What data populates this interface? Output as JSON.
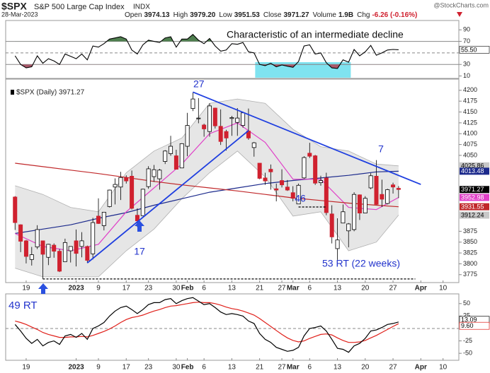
{
  "header": {
    "symbol": "$SPX",
    "name": "S&P 500 Large Cap Index",
    "exchange": "INDX",
    "watermark": "@StockCharts.com",
    "date": "28-Mar-2023",
    "quote": [
      {
        "label": "Open",
        "value": "3974.13"
      },
      {
        "label": "High",
        "value": "3979.20"
      },
      {
        "label": "Low",
        "value": "3951.53"
      },
      {
        "label": "Close",
        "value": "3971.27"
      },
      {
        "label": "Volume",
        "value": "1.9B"
      },
      {
        "label": "Chg",
        "value": "-6.26 (-0.16%)",
        "color": "#d0212f"
      }
    ]
  },
  "chart_data": {
    "type": "candlestick",
    "categories": [
      "Dec 15",
      "Dec 16",
      "Dec 19",
      "Dec 20",
      "Dec 21",
      "Dec 22",
      "Dec 23",
      "Dec 27",
      "Dec 28",
      "Dec 29",
      "Dec 30",
      "Jan 3",
      "Jan 4",
      "Jan 5",
      "Jan 6",
      "Jan 9",
      "Jan 10",
      "Jan 11",
      "Jan 12",
      "Jan 13",
      "Jan 17",
      "Jan 18",
      "Jan 19",
      "Jan 20",
      "Jan 23",
      "Jan 24",
      "Jan 25",
      "Jan 26",
      "Jan 27",
      "Jan 30",
      "Jan 31",
      "Feb 1",
      "Feb 2",
      "Feb 3",
      "Feb 6",
      "Feb 7",
      "Feb 8",
      "Feb 9",
      "Feb 10",
      "Feb 13",
      "Feb 14",
      "Feb 15",
      "Feb 16",
      "Feb 17",
      "Feb 21",
      "Feb 22",
      "Feb 23",
      "Feb 24",
      "Feb 27",
      "Feb 28",
      "Mar 1",
      "Mar 2",
      "Mar 3",
      "Mar 6",
      "Mar 7",
      "Mar 8",
      "Mar 9",
      "Mar 10",
      "Mar 13",
      "Mar 14",
      "Mar 15",
      "Mar 16",
      "Mar 17",
      "Mar 20",
      "Mar 21",
      "Mar 22",
      "Mar 23",
      "Mar 24",
      "Mar 27",
      "Mar 28",
      "Mar 29",
      "Mar 30",
      "Mar 31",
      "Apr 3",
      "Apr 4",
      "Apr 5",
      "Apr 6",
      "Apr 10",
      "Apr 11",
      "Apr 12"
    ],
    "xticks": [
      {
        "value": "Dec 19",
        "label": "19"
      },
      {
        "value": "Jan 3",
        "label": "2023"
      },
      {
        "value": "Jan 9",
        "label": "9"
      },
      {
        "value": "Jan 17",
        "label": "17"
      },
      {
        "value": "Jan 23",
        "label": "23"
      },
      {
        "value": "Jan 30",
        "label": "30"
      },
      {
        "value": "Feb 1",
        "label": "Feb"
      },
      {
        "value": "Feb 6",
        "label": "6"
      },
      {
        "value": "Feb 13",
        "label": "13"
      },
      {
        "value": "Feb 21",
        "label": "21"
      },
      {
        "value": "Feb 27",
        "label": "27"
      },
      {
        "value": "Mar 1",
        "label": "Mar"
      },
      {
        "value": "Mar 6",
        "label": "6"
      },
      {
        "value": "Mar 13",
        "label": "13"
      },
      {
        "value": "Mar 20",
        "label": "20"
      },
      {
        "value": "Mar 27",
        "label": "27"
      },
      {
        "value": "Apr 3",
        "label": "Apr"
      },
      {
        "value": "Apr 10",
        "label": "10"
      }
    ],
    "price": {
      "legend": "$SPX (Daily) 3971.27",
      "ylim": [
        3760,
        4216
      ],
      "yticks": [
        4200,
        4175,
        4150,
        4125,
        4100,
        4075,
        4050,
        3875,
        3850,
        3825,
        3800,
        3775
      ],
      "up_color": "#ffffff",
      "down_color": "#d0212f",
      "open": [
        3954,
        3890,
        3853,
        3810,
        3839,
        3853,
        3815,
        3843,
        3829,
        3805,
        3830,
        3853,
        3840,
        3840,
        3823,
        3910,
        3888,
        3932,
        3977,
        3977,
        3999,
        4002,
        3912,
        3911,
        3978,
        4001,
        3996,
        4036,
        4054,
        4049,
        4021,
        4071,
        4158,
        4136,
        4120,
        4105,
        4159,
        4117,
        4105,
        4135,
        4126,
        4119,
        4106,
        4068,
        4032,
        3998,
        4018,
        3973,
        3992,
        3977,
        3964,
        3938,
        3998,
        4055,
        4049,
        3987,
        3998,
        3915,
        3835,
        3894,
        3876,
        3879,
        3959,
        3917,
        3975,
        4002,
        3960,
        3939,
        3982,
        3974.13,
        null,
        null,
        null,
        null,
        null,
        null,
        null,
        null,
        null,
        null
      ],
      "high": [
        3956,
        3891,
        3855,
        3839,
        3889,
        3853,
        3846,
        3847,
        3834,
        3858,
        3840,
        3879,
        3873,
        3842,
        3906,
        3951,
        3919,
        3971,
        3997,
        4012,
        4004,
        4015,
        3928,
        3973,
        4025,
        4028,
        4019,
        4062,
        4095,
        4063,
        4078,
        4148,
        4195,
        4182,
        4123,
        4170,
        4160,
        4156,
        4109,
        4141,
        4159,
        4148,
        4158,
        4081,
        4032,
        4010,
        4029,
        3985,
        4018,
        3993,
        3979,
        3985,
        4048,
        4079,
        4051,
        4003,
        4010,
        3935,
        3905,
        3937,
        3894,
        3965,
        3960,
        3956,
        4009,
        4039,
        3994,
        3973,
        3987,
        3979.2,
        null,
        null,
        null,
        null,
        null,
        null,
        null,
        null,
        null,
        null
      ],
      "low": [
        3878,
        3827,
        3801,
        3796,
        3834,
        3765,
        3797,
        3814,
        3781,
        3805,
        3803,
        3794,
        3815,
        3802,
        3810,
        3892,
        3877,
        3930,
        3937,
        3947,
        3985,
        3925,
        3885,
        3911,
        3973,
        3989,
        3971,
        4030,
        4049,
        4018,
        4021,
        4048,
        4152,
        4124,
        4093,
        4093,
        4112,
        4074,
        4061,
        4095,
        4095,
        4114,
        4086,
        4047,
        3995,
        3982,
        3971,
        3944,
        3976,
        3968,
        3944,
        3938,
        3996,
        4044,
        3982,
        3980,
        3912,
        3847,
        3809,
        3894,
        3838,
        3875,
        3901,
        3917,
        3972,
        3936,
        3931,
        3937,
        3962,
        3951.53,
        null,
        null,
        null,
        null,
        null,
        null,
        null,
        null,
        null,
        null
      ],
      "close": [
        3895,
        3852,
        3817,
        3821,
        3879,
        3822,
        3845,
        3829,
        3783,
        3849,
        3840,
        3824,
        3853,
        3808,
        3895,
        3893,
        3919,
        3970,
        3983,
        3999,
        3991,
        3928,
        3899,
        3972,
        4019,
        4017,
        4016,
        4060,
        4071,
        4018,
        4077,
        4119,
        4180,
        4136,
        4111,
        4164,
        4118,
        4082,
        4090,
        4137,
        4136,
        4148,
        4090,
        4079,
        3997,
        3991,
        4012,
        3970,
        3982,
        3970,
        3951,
        3981,
        4045,
        4048,
        3986,
        3992,
        3918,
        3862,
        3855,
        3920,
        3892,
        3960,
        3917,
        3951,
        4003,
        3937,
        3949,
        3971,
        3977,
        3971.27,
        null,
        null,
        null,
        null,
        null,
        null,
        null,
        null,
        null,
        null
      ],
      "close_label": "3971.27",
      "close_color": "#000000",
      "band": {
        "color": "#c8c8c8",
        "x": [
          "Dec 15",
          "Dec 22",
          "Dec 30",
          "Jan 9",
          "Jan 17",
          "Jan 24",
          "Jan 31",
          "Feb 7",
          "Feb 14",
          "Feb 22",
          "Mar 1",
          "Mar 8",
          "Mar 15",
          "Mar 22",
          "Mar 28"
        ],
        "upper": [
          3980,
          3960,
          3930,
          3920,
          4010,
          4060,
          4090,
          4170,
          4180,
          4170,
          4110,
          4070,
          4060,
          4030,
          4025.86
        ],
        "lower": [
          3790,
          3770,
          3770,
          3770,
          3830,
          3880,
          3950,
          4010,
          4060,
          4000,
          3910,
          3920,
          3830,
          3850,
          3912.24
        ],
        "upper_label": "4025.86",
        "lower_label": "3912.24"
      },
      "overlays": [
        {
          "color": "#1c2a8c",
          "x": [
            "Dec 15",
            "Dec 22",
            "Dec 30",
            "Jan 9",
            "Jan 17",
            "Jan 24",
            "Jan 31",
            "Feb 7",
            "Feb 14",
            "Feb 22",
            "Mar 1",
            "Mar 8",
            "Mar 15",
            "Mar 22",
            "Mar 28"
          ],
          "values": [
            3870,
            3880,
            3890,
            3905,
            3918,
            3935,
            3950,
            3965,
            3975,
            3985,
            3992,
            3998,
            4004,
            4012,
            4013.48
          ],
          "last_label": "4013.48"
        },
        {
          "color": "#e040c8",
          "x": [
            "Dec 15",
            "Dec 22",
            "Dec 30",
            "Jan 9",
            "Jan 17",
            "Jan 24",
            "Jan 31",
            "Feb 7",
            "Feb 14",
            "Feb 22",
            "Mar 1",
            "Mar 8",
            "Mar 15",
            "Mar 22",
            "Mar 28"
          ],
          "values": [
            3870,
            3840,
            3830,
            3845,
            3920,
            3975,
            4030,
            4100,
            4125,
            4080,
            3995,
            3995,
            3930,
            3925,
            3952.98
          ],
          "last_label": "3952.98"
        },
        {
          "color": "#c0282a",
          "x": [
            "Dec 15",
            "Dec 22",
            "Dec 30",
            "Jan 9",
            "Jan 17",
            "Jan 24",
            "Jan 31",
            "Feb 7",
            "Feb 14",
            "Feb 22",
            "Mar 1",
            "Mar 8",
            "Mar 15",
            "Mar 22",
            "Mar 28"
          ],
          "values": [
            4032,
            4024,
            4016,
            4008,
            3999,
            3990,
            3982,
            3975,
            3968,
            3960,
            3952,
            3946,
            3940,
            3935,
            3931.55
          ],
          "last_label": "3931.55"
        }
      ],
      "trendlines": [
        {
          "color": "#1f3fe0",
          "x": [
            "Feb 2",
            "Apr 3"
          ],
          "values": [
            4196,
            3983
          ]
        },
        {
          "color": "#1f3fe0",
          "x": [
            "Jan 5",
            "Feb 16"
          ],
          "values": [
            3802,
            4107
          ]
        }
      ],
      "dashed_lines": [
        {
          "color": "#000000",
          "x": [
            "Dec 22",
            "Mar 31"
          ],
          "values": [
            3765,
            3765
          ]
        },
        {
          "color": "#000000",
          "x": [
            "Mar 2",
            "Mar 9"
          ],
          "values": [
            3931,
            3931
          ]
        }
      ],
      "annotations": [
        {
          "text": "27"
        },
        {
          "text": "17"
        },
        {
          "text": "46"
        },
        {
          "text": "7"
        },
        {
          "text": "53 RT (22 weeks)"
        }
      ]
    },
    "rsi": {
      "ylim": [
        7,
        105
      ],
      "yticks": [
        90,
        70,
        30,
        10
      ],
      "levels": [
        70,
        50,
        30
      ],
      "color": "#000000",
      "overbought_color": "#4f7f4f",
      "oversold_color": "#a8586a",
      "values": [
        45,
        30,
        24,
        26,
        45,
        32,
        40,
        36,
        30,
        48,
        44,
        40,
        48,
        38,
        62,
        60,
        66,
        74,
        76,
        78,
        74,
        55,
        48,
        64,
        72,
        70,
        68,
        76,
        78,
        60,
        74,
        74,
        82,
        72,
        66,
        75,
        62,
        53,
        55,
        66,
        65,
        68,
        52,
        50,
        30,
        28,
        32,
        26,
        29,
        27,
        25,
        35,
        62,
        64,
        48,
        50,
        33,
        24,
        23,
        38,
        34,
        56,
        45,
        52,
        63,
        46,
        50,
        55,
        56,
        55.5,
        null,
        null,
        null,
        null,
        null,
        null,
        null,
        null,
        null,
        null
      ],
      "last_label": "55.50",
      "highlight": {
        "color": "#7fe3f0",
        "x": [
          "Feb 21",
          "Mar 16"
        ],
        "values": [
          34
        ]
      },
      "annotation": "Characteristic of an intermediate decline"
    },
    "macd": {
      "ylim": [
        -64,
        71
      ],
      "yticks": [
        50,
        25,
        -25,
        -50
      ],
      "levels": [
        0
      ],
      "series": [
        {
          "color": "#000000",
          "values": [
            8,
            -5,
            -20,
            -30,
            -22,
            -35,
            -28,
            -25,
            -32,
            -15,
            -12,
            -18,
            -10,
            -22,
            0,
            5,
            12,
            25,
            35,
            42,
            45,
            38,
            30,
            38,
            48,
            52,
            52,
            58,
            60,
            50,
            56,
            60,
            62,
            55,
            48,
            50,
            42,
            33,
            28,
            30,
            28,
            25,
            15,
            10,
            -10,
            -22,
            -28,
            -38,
            -42,
            -46,
            -44,
            -38,
            -15,
            0,
            2,
            5,
            -5,
            -22,
            -40,
            -42,
            -48,
            -35,
            -30,
            -20,
            -5,
            -3,
            2,
            8,
            10,
            13.09,
            null,
            null,
            null,
            null,
            null,
            null,
            null,
            null,
            null,
            null
          ],
          "last_label": "13.09"
        },
        {
          "color": "#e0201a",
          "values": [
            15,
            12,
            8,
            3,
            -2,
            -8,
            -12,
            -15,
            -18,
            -18,
            -17,
            -17,
            -16,
            -17,
            -14,
            -10,
            -6,
            -1,
            5,
            12,
            18,
            22,
            24,
            27,
            31,
            35,
            38,
            42,
            45,
            46,
            48,
            50,
            52,
            53,
            52,
            52,
            50,
            47,
            43,
            40,
            38,
            35,
            31,
            27,
            20,
            12,
            4,
            -4,
            -12,
            -19,
            -24,
            -27,
            -25,
            -20,
            -16,
            -12,
            -11,
            -13,
            -19,
            -24,
            -28,
            -28,
            -27,
            -24,
            -19,
            -14,
            -8,
            -2,
            4,
            9.6,
            null,
            null,
            null,
            null,
            null,
            null,
            null,
            null,
            null,
            null
          ],
          "last_label": "9.60"
        }
      ],
      "annotation": "49 RT"
    }
  }
}
